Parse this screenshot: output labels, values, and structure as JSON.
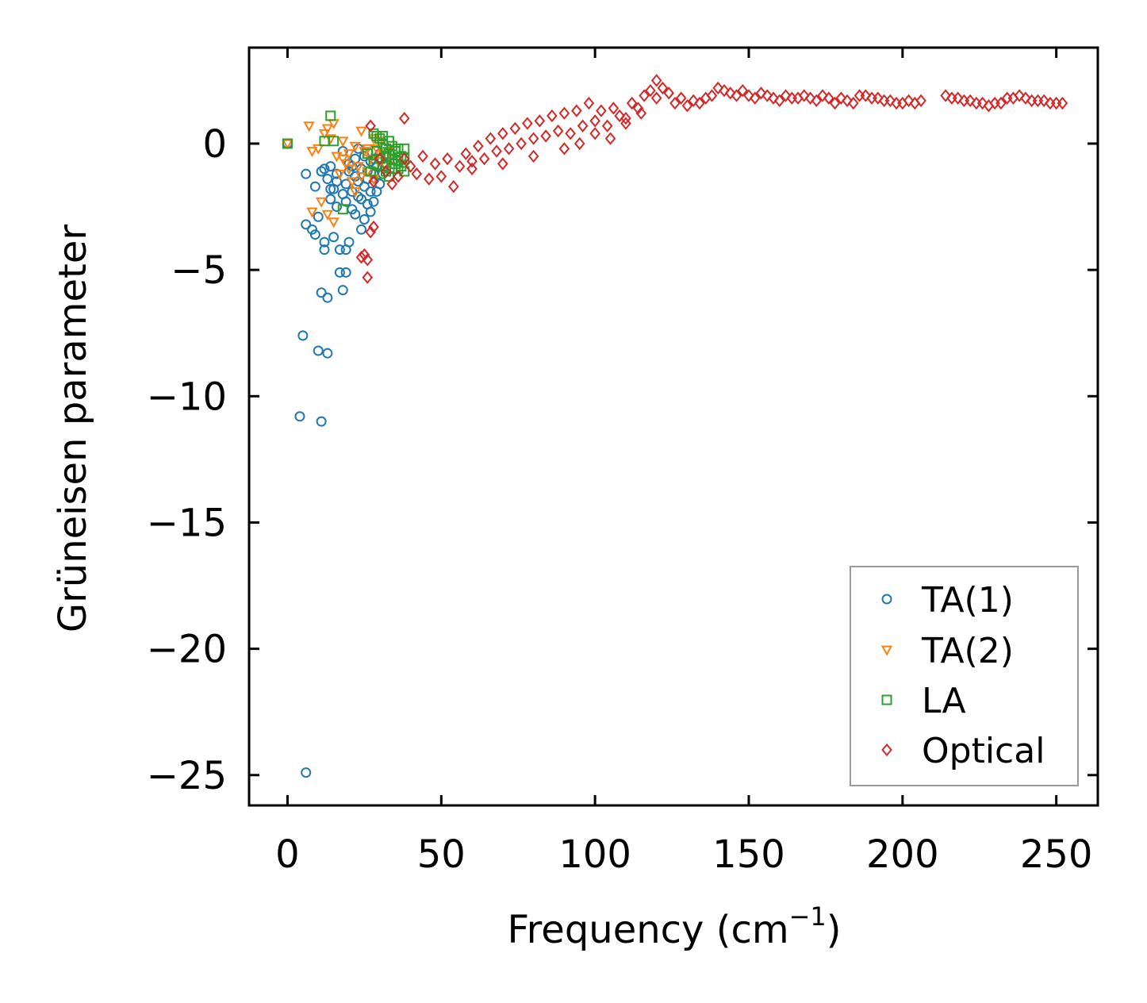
{
  "chart_data": {
    "type": "scatter",
    "title": "",
    "xlabel": "Frequency (cm",
    "xlabel_sup": "−1",
    "xlabel_close": ")",
    "ylabel": "Grüneisen parameter",
    "xlim": [
      -12.5,
      263.5
    ],
    "ylim": [
      -26.2,
      3.8
    ],
    "xticks": [
      0,
      50,
      100,
      150,
      200,
      250
    ],
    "xtick_labels": [
      "0",
      "50",
      "100",
      "150",
      "200",
      "250"
    ],
    "yticks": [
      0,
      -5,
      -10,
      -15,
      -20,
      -25
    ],
    "ytick_labels": [
      "0",
      "−5",
      "−10",
      "−15",
      "−20",
      "−25"
    ],
    "legend_position": "lower-right",
    "series": [
      {
        "name": "TA(1)",
        "marker": "circle",
        "color": "#1f77b4",
        "points": [
          [
            0,
            0
          ],
          [
            6,
            -1.2
          ],
          [
            6,
            -3.2
          ],
          [
            6,
            -24.9
          ],
          [
            5,
            -7.6
          ],
          [
            4,
            -10.8
          ],
          [
            9,
            -1.7
          ],
          [
            8,
            -3.4
          ],
          [
            9,
            -3.6
          ],
          [
            10,
            -2.9
          ],
          [
            10,
            -8.2
          ],
          [
            11,
            -5.9
          ],
          [
            11,
            -11.0
          ],
          [
            12,
            -4.2
          ],
          [
            12,
            -3.9
          ],
          [
            13,
            -6.1
          ],
          [
            13,
            -8.3
          ],
          [
            13,
            -1.4
          ],
          [
            14,
            -2.2
          ],
          [
            14,
            -0.9
          ],
          [
            15,
            -1.8
          ],
          [
            15,
            -3.7
          ],
          [
            16,
            -1.2
          ],
          [
            16,
            -2.5
          ],
          [
            17,
            -5.1
          ],
          [
            17,
            -4.2
          ],
          [
            18,
            -5.8
          ],
          [
            18,
            -0.3
          ],
          [
            19,
            -5.1
          ],
          [
            19,
            -4.2
          ],
          [
            19,
            -1.6
          ],
          [
            20,
            -0.8
          ],
          [
            20,
            -3.9
          ],
          [
            21,
            -1.9
          ],
          [
            21,
            -2.6
          ],
          [
            22,
            -0.6
          ],
          [
            22,
            -1.3
          ],
          [
            23,
            -2.1
          ],
          [
            23,
            -0.2
          ],
          [
            24,
            -1.0
          ],
          [
            24,
            -3.4
          ],
          [
            25,
            -1.7
          ],
          [
            25,
            -0.5
          ],
          [
            26,
            -2.4
          ],
          [
            26,
            -1.1
          ],
          [
            27,
            -1.9
          ],
          [
            27,
            -0.7
          ],
          [
            28,
            -2.3
          ],
          [
            28,
            -1.2
          ],
          [
            29,
            -0.9
          ],
          [
            30,
            -1.6
          ],
          [
            30,
            -0.4
          ],
          [
            31,
            -1.2
          ],
          [
            32,
            -0.8
          ],
          [
            22,
            -2.8
          ],
          [
            24,
            -2.2
          ],
          [
            20,
            -1.1
          ],
          [
            18,
            -2.0
          ],
          [
            16,
            -1.5
          ],
          [
            14,
            -1.8
          ],
          [
            12,
            -1.0
          ],
          [
            11,
            -1.1
          ],
          [
            25,
            -3.0
          ],
          [
            23,
            -1.5
          ],
          [
            21,
            -0.9
          ],
          [
            19,
            -2.3
          ],
          [
            26,
            -1.4
          ],
          [
            28,
            -0.6
          ],
          [
            29,
            -1.9
          ],
          [
            27,
            -2.7
          ]
        ]
      },
      {
        "name": "TA(2)",
        "marker": "triangle-down",
        "color": "#ff7f0e",
        "points": [
          [
            0,
            0
          ],
          [
            7,
            0.7
          ],
          [
            8,
            -0.3
          ],
          [
            8,
            -2.7
          ],
          [
            10,
            -0.2
          ],
          [
            11,
            -2.3
          ],
          [
            12,
            0.4
          ],
          [
            13,
            0.6
          ],
          [
            13,
            -2.8
          ],
          [
            14,
            0.2
          ],
          [
            15,
            0.8
          ],
          [
            15,
            -3.1
          ],
          [
            16,
            -0.5
          ],
          [
            17,
            -1.2
          ],
          [
            18,
            0.1
          ],
          [
            19,
            -0.8
          ],
          [
            20,
            -0.4
          ],
          [
            21,
            -1.5
          ],
          [
            22,
            -0.1
          ],
          [
            23,
            -0.9
          ],
          [
            24,
            0.5
          ],
          [
            25,
            -0.3
          ],
          [
            26,
            -1.1
          ],
          [
            27,
            -0.6
          ],
          [
            28,
            0.2
          ],
          [
            29,
            -0.2
          ],
          [
            30,
            -0.7
          ],
          [
            31,
            -0.4
          ],
          [
            32,
            -0.9
          ],
          [
            33,
            -0.3
          ],
          [
            34,
            -0.6
          ],
          [
            22,
            -1.9
          ],
          [
            24,
            -1.3
          ],
          [
            26,
            -0.2
          ],
          [
            28,
            -1.4
          ],
          [
            30,
            0.1
          ],
          [
            20,
            -1.0
          ],
          [
            18,
            -0.6
          ]
        ]
      },
      {
        "name": "LA",
        "marker": "square",
        "color": "#2ca02c",
        "points": [
          [
            0,
            0
          ],
          [
            14,
            1.1
          ],
          [
            12,
            0.1
          ],
          [
            15,
            0.1
          ],
          [
            18,
            -2.6
          ],
          [
            28,
            0.4
          ],
          [
            29,
            0.3
          ],
          [
            30,
            0.2
          ],
          [
            31,
            0.0
          ],
          [
            32,
            -0.2
          ],
          [
            33,
            -0.4
          ],
          [
            34,
            -0.6
          ],
          [
            35,
            -0.8
          ],
          [
            36,
            -1.0
          ],
          [
            37,
            -0.5
          ],
          [
            38,
            -0.2
          ],
          [
            29,
            -0.3
          ],
          [
            30,
            -0.6
          ],
          [
            31,
            -0.9
          ],
          [
            32,
            -1.1
          ],
          [
            33,
            -1.3
          ],
          [
            34,
            -0.1
          ],
          [
            35,
            -0.3
          ],
          [
            36,
            -0.2
          ],
          [
            37,
            -0.9
          ],
          [
            38,
            -1.1
          ],
          [
            28,
            -0.8
          ],
          [
            27,
            -1.1
          ],
          [
            26,
            -0.4
          ],
          [
            30,
            -1.2
          ],
          [
            32,
            -0.5
          ],
          [
            34,
            -1.0
          ],
          [
            36,
            -0.7
          ],
          [
            38,
            -0.6
          ],
          [
            31,
            0.3
          ],
          [
            33,
            0.1
          ]
        ]
      },
      {
        "name": "Optical",
        "marker": "diamond",
        "color": "#d62728",
        "points": [
          [
            24,
            -4.5
          ],
          [
            25,
            -4.4
          ],
          [
            26,
            -4.6
          ],
          [
            26,
            -5.3
          ],
          [
            27,
            -3.5
          ],
          [
            28,
            -3.3
          ],
          [
            27,
            0.7
          ],
          [
            28,
            -1.5
          ],
          [
            30,
            -0.6
          ],
          [
            32,
            -1.1
          ],
          [
            34,
            -1.6
          ],
          [
            36,
            -1.3
          ],
          [
            38,
            1.0
          ],
          [
            38,
            -0.6
          ],
          [
            40,
            -0.9
          ],
          [
            42,
            -1.2
          ],
          [
            44,
            -0.5
          ],
          [
            46,
            -1.4
          ],
          [
            48,
            -0.8
          ],
          [
            50,
            -1.3
          ],
          [
            52,
            -0.6
          ],
          [
            54,
            -1.7
          ],
          [
            56,
            -0.9
          ],
          [
            58,
            -0.4
          ],
          [
            60,
            -0.7
          ],
          [
            62,
            -0.1
          ],
          [
            64,
            -0.6
          ],
          [
            66,
            0.2
          ],
          [
            68,
            -0.3
          ],
          [
            70,
            0.4
          ],
          [
            72,
            -0.2
          ],
          [
            74,
            0.6
          ],
          [
            76,
            0.0
          ],
          [
            78,
            0.8
          ],
          [
            80,
            0.2
          ],
          [
            82,
            0.9
          ],
          [
            84,
            0.3
          ],
          [
            86,
            1.1
          ],
          [
            88,
            0.5
          ],
          [
            90,
            1.2
          ],
          [
            92,
            0.4
          ],
          [
            94,
            1.3
          ],
          [
            96,
            0.7
          ],
          [
            98,
            1.6
          ],
          [
            100,
            0.9
          ],
          [
            102,
            1.3
          ],
          [
            104,
            0.7
          ],
          [
            106,
            1.4
          ],
          [
            108,
            1.1
          ],
          [
            110,
            0.8
          ],
          [
            112,
            1.6
          ],
          [
            114,
            1.4
          ],
          [
            116,
            1.9
          ],
          [
            118,
            2.1
          ],
          [
            120,
            2.5
          ],
          [
            122,
            2.2
          ],
          [
            124,
            2.0
          ],
          [
            126,
            1.6
          ],
          [
            128,
            1.8
          ],
          [
            130,
            1.5
          ],
          [
            132,
            1.7
          ],
          [
            134,
            1.6
          ],
          [
            136,
            1.8
          ],
          [
            138,
            1.9
          ],
          [
            140,
            2.2
          ],
          [
            142,
            2.1
          ],
          [
            144,
            2.0
          ],
          [
            146,
            1.9
          ],
          [
            148,
            2.1
          ],
          [
            150,
            1.9
          ],
          [
            152,
            1.8
          ],
          [
            154,
            2.0
          ],
          [
            156,
            1.9
          ],
          [
            158,
            1.8
          ],
          [
            160,
            1.7
          ],
          [
            162,
            1.9
          ],
          [
            164,
            1.8
          ],
          [
            166,
            1.8
          ],
          [
            168,
            1.9
          ],
          [
            170,
            1.8
          ],
          [
            172,
            1.7
          ],
          [
            174,
            1.9
          ],
          [
            176,
            1.8
          ],
          [
            178,
            1.6
          ],
          [
            180,
            1.8
          ],
          [
            182,
            1.7
          ],
          [
            184,
            1.6
          ],
          [
            186,
            1.9
          ],
          [
            188,
            1.9
          ],
          [
            190,
            1.8
          ],
          [
            192,
            1.8
          ],
          [
            194,
            1.7
          ],
          [
            196,
            1.7
          ],
          [
            198,
            1.6
          ],
          [
            200,
            1.6
          ],
          [
            202,
            1.7
          ],
          [
            204,
            1.6
          ],
          [
            206,
            1.7
          ],
          [
            214,
            1.9
          ],
          [
            216,
            1.8
          ],
          [
            218,
            1.8
          ],
          [
            220,
            1.7
          ],
          [
            222,
            1.7
          ],
          [
            224,
            1.6
          ],
          [
            226,
            1.6
          ],
          [
            228,
            1.5
          ],
          [
            230,
            1.6
          ],
          [
            232,
            1.6
          ],
          [
            234,
            1.8
          ],
          [
            236,
            1.8
          ],
          [
            238,
            1.9
          ],
          [
            240,
            1.8
          ],
          [
            242,
            1.7
          ],
          [
            244,
            1.7
          ],
          [
            246,
            1.7
          ],
          [
            248,
            1.6
          ],
          [
            250,
            1.6
          ],
          [
            252,
            1.6
          ],
          [
            60,
            -1.0
          ],
          [
            70,
            -0.8
          ],
          [
            80,
            -0.5
          ],
          [
            90,
            -0.2
          ],
          [
            95,
            0.0
          ],
          [
            100,
            0.4
          ],
          [
            105,
            0.2
          ],
          [
            110,
            1.0
          ],
          [
            115,
            1.2
          ],
          [
            120,
            1.8
          ]
        ]
      }
    ]
  }
}
